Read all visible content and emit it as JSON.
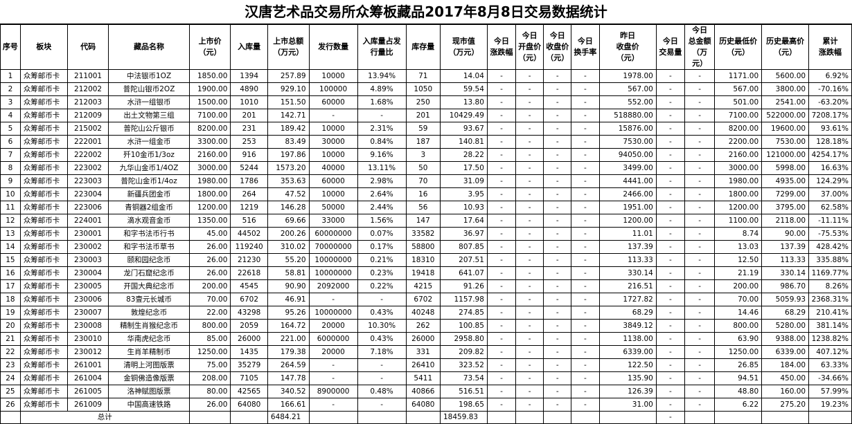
{
  "title": "汉唐艺术品交易所众筹板藏品2017年8月8日交易数据统计",
  "headers": [
    "序号",
    "板块",
    "代码",
    "藏品名称",
    "上市价\n（元）",
    "入库量",
    "上市总额\n（万元）",
    "发行数量",
    "入库量占发\n行量比",
    "库存量",
    "现市值\n（万元）",
    "今日\n涨跌幅",
    "今日\n开盘价\n（元）",
    "今日\n收盘价\n（元）",
    "今日\n换手率",
    "昨日\n收盘价\n（元）",
    "今日\n交易量",
    "今日\n总金额\n（万元）",
    "历史最低价\n（元）",
    "历史最高价\n（元）",
    "累计\n涨跌幅"
  ],
  "rows": [
    [
      "1",
      "众筹邮币卡",
      "211001",
      "中法银币1OZ",
      "1850.00",
      "1394",
      "257.89",
      "10000",
      "13.94%",
      "71",
      "14.04",
      "-",
      "-",
      "-",
      "-",
      "1978.00",
      "-",
      "-",
      "1171.00",
      "5600.00",
      "6.92%"
    ],
    [
      "2",
      "众筹邮币卡",
      "212002",
      "普陀山银币2OZ",
      "1900.00",
      "4890",
      "929.10",
      "100000",
      "4.89%",
      "1050",
      "59.54",
      "-",
      "-",
      "-",
      "-",
      "567.00",
      "-",
      "-",
      "567.00",
      "3800.00",
      "-70.16%"
    ],
    [
      "3",
      "众筹邮币卡",
      "212003",
      "水浒一组银币",
      "1500.00",
      "1010",
      "151.50",
      "60000",
      "1.68%",
      "250",
      "13.80",
      "-",
      "-",
      "-",
      "-",
      "552.00",
      "-",
      "-",
      "501.00",
      "2541.00",
      "-63.20%"
    ],
    [
      "4",
      "众筹邮币卡",
      "212009",
      "出土文物第三组",
      "7100.00",
      "201",
      "142.71",
      "-",
      "-",
      "201",
      "10429.49",
      "-",
      "-",
      "-",
      "-",
      "518880.00",
      "-",
      "-",
      "7100.00",
      "522000.00",
      "7208.17%"
    ],
    [
      "5",
      "众筹邮币卡",
      "215002",
      "普陀山公斤银币",
      "8200.00",
      "231",
      "189.42",
      "10000",
      "2.31%",
      "59",
      "93.67",
      "-",
      "-",
      "-",
      "-",
      "15876.00",
      "-",
      "-",
      "8200.00",
      "19600.00",
      "93.61%"
    ],
    [
      "6",
      "众筹邮币卡",
      "222001",
      "水浒一组金币",
      "3300.00",
      "253",
      "83.49",
      "30000",
      "0.84%",
      "187",
      "140.81",
      "-",
      "-",
      "-",
      "-",
      "7530.00",
      "-",
      "-",
      "2200.00",
      "7530.00",
      "128.18%"
    ],
    [
      "7",
      "众筹邮币卡",
      "222002",
      "歼10金币1/3oz",
      "2160.00",
      "916",
      "197.86",
      "10000",
      "9.16%",
      "3",
      "28.22",
      "-",
      "-",
      "-",
      "-",
      "94050.00",
      "-",
      "-",
      "2160.00",
      "121000.00",
      "4254.17%"
    ],
    [
      "8",
      "众筹邮币卡",
      "223002",
      "九华山金币1/4OZ",
      "3000.00",
      "5244",
      "1573.20",
      "40000",
      "13.11%",
      "50",
      "17.50",
      "-",
      "-",
      "-",
      "-",
      "3499.00",
      "-",
      "-",
      "3000.00",
      "5998.00",
      "16.63%"
    ],
    [
      "9",
      "众筹邮币卡",
      "223003",
      "普陀山金币1/4oz",
      "1980.00",
      "1786",
      "353.63",
      "60000",
      "2.98%",
      "70",
      "31.09",
      "-",
      "-",
      "-",
      "-",
      "4441.00",
      "-",
      "-",
      "1980.00",
      "4935.00",
      "124.29%"
    ],
    [
      "10",
      "众筹邮币卡",
      "223004",
      "新疆兵团金币",
      "1800.00",
      "264",
      "47.52",
      "10000",
      "2.64%",
      "16",
      "3.95",
      "-",
      "-",
      "-",
      "-",
      "2466.00",
      "-",
      "-",
      "1800.00",
      "7299.00",
      "37.00%"
    ],
    [
      "11",
      "众筹邮币卡",
      "223006",
      "青铜器2组金币",
      "1200.00",
      "1219",
      "146.28",
      "50000",
      "2.44%",
      "56",
      "10.93",
      "-",
      "-",
      "-",
      "-",
      "1951.00",
      "-",
      "-",
      "1200.00",
      "3795.00",
      "62.58%"
    ],
    [
      "12",
      "众筹邮币卡",
      "224001",
      "滴水观音金币",
      "1350.00",
      "516",
      "69.66",
      "33000",
      "1.56%",
      "147",
      "17.64",
      "-",
      "-",
      "-",
      "-",
      "1200.00",
      "-",
      "-",
      "1100.00",
      "2118.00",
      "-11.11%"
    ],
    [
      "13",
      "众筹邮币卡",
      "230001",
      "和字书法币行书",
      "45.00",
      "44502",
      "200.26",
      "60000000",
      "0.07%",
      "33582",
      "36.97",
      "-",
      "-",
      "-",
      "-",
      "11.01",
      "-",
      "-",
      "8.74",
      "90.00",
      "-75.53%"
    ],
    [
      "14",
      "众筹邮币卡",
      "230002",
      "和字书法币草书",
      "26.00",
      "119240",
      "310.02",
      "70000000",
      "0.17%",
      "58800",
      "807.85",
      "-",
      "-",
      "-",
      "-",
      "137.39",
      "-",
      "-",
      "13.03",
      "137.39",
      "428.42%"
    ],
    [
      "15",
      "众筹邮币卡",
      "230003",
      "颐和园纪念币",
      "26.00",
      "21230",
      "55.20",
      "10000000",
      "0.21%",
      "18310",
      "207.51",
      "-",
      "-",
      "-",
      "-",
      "113.33",
      "-",
      "-",
      "12.50",
      "113.33",
      "335.88%"
    ],
    [
      "16",
      "众筹邮币卡",
      "230004",
      "龙门石窟纪念币",
      "26.00",
      "22618",
      "58.81",
      "10000000",
      "0.23%",
      "19418",
      "641.07",
      "-",
      "-",
      "-",
      "-",
      "330.14",
      "-",
      "-",
      "21.19",
      "330.14",
      "1169.77%"
    ],
    [
      "17",
      "众筹邮币卡",
      "230005",
      "开国大典纪念币",
      "200.00",
      "4545",
      "90.90",
      "2092000",
      "0.22%",
      "4215",
      "91.26",
      "-",
      "-",
      "-",
      "-",
      "216.51",
      "-",
      "-",
      "200.00",
      "986.70",
      "8.26%"
    ],
    [
      "18",
      "众筹邮币卡",
      "230006",
      "83壹元长城币",
      "70.00",
      "6702",
      "46.91",
      "-",
      "-",
      "6702",
      "1157.98",
      "-",
      "-",
      "-",
      "-",
      "1727.82",
      "-",
      "-",
      "70.00",
      "5059.93",
      "2368.31%"
    ],
    [
      "19",
      "众筹邮币卡",
      "230007",
      "敦煌纪念币",
      "22.00",
      "43298",
      "95.26",
      "10000000",
      "0.43%",
      "40248",
      "274.85",
      "-",
      "-",
      "-",
      "-",
      "68.29",
      "-",
      "-",
      "14.46",
      "68.29",
      "210.41%"
    ],
    [
      "20",
      "众筹邮币卡",
      "230008",
      "精制生肖猴纪念币",
      "800.00",
      "2059",
      "164.72",
      "20000",
      "10.30%",
      "262",
      "100.85",
      "-",
      "-",
      "-",
      "-",
      "3849.12",
      "-",
      "-",
      "800.00",
      "5280.00",
      "381.14%"
    ],
    [
      "21",
      "众筹邮币卡",
      "230010",
      "华南虎纪念币",
      "85.00",
      "26000",
      "221.00",
      "6000000",
      "0.43%",
      "26000",
      "2958.80",
      "-",
      "-",
      "-",
      "-",
      "1138.00",
      "-",
      "-",
      "63.90",
      "9388.00",
      "1238.82%"
    ],
    [
      "22",
      "众筹邮币卡",
      "230012",
      "生肖羊精制币",
      "1250.00",
      "1435",
      "179.38",
      "20000",
      "7.18%",
      "331",
      "209.82",
      "-",
      "-",
      "-",
      "-",
      "6339.00",
      "-",
      "-",
      "1250.00",
      "6339.00",
      "407.12%"
    ],
    [
      "23",
      "众筹邮币卡",
      "261001",
      "清明上河图版票",
      "75.00",
      "35279",
      "264.59",
      "-",
      "-",
      "26410",
      "323.52",
      "-",
      "-",
      "-",
      "-",
      "122.50",
      "-",
      "-",
      "26.85",
      "184.00",
      "63.33%"
    ],
    [
      "24",
      "众筹邮币卡",
      "261004",
      "金铜佛造像版票",
      "208.00",
      "7105",
      "147.78",
      "-",
      "-",
      "5411",
      "73.54",
      "-",
      "-",
      "-",
      "-",
      "135.90",
      "-",
      "-",
      "94.51",
      "450.00",
      "-34.66%"
    ],
    [
      "25",
      "众筹邮币卡",
      "261005",
      "洛神赋图版票",
      "80.00",
      "42565",
      "340.52",
      "8900000",
      "0.48%",
      "40866",
      "516.51",
      "-",
      "-",
      "-",
      "-",
      "126.39",
      "-",
      "-",
      "48.80",
      "160.00",
      "57.99%"
    ],
    [
      "26",
      "众筹邮币卡",
      "261009",
      "中国高速铁路",
      "26.00",
      "64080",
      "166.61",
      "-",
      "-",
      "64080",
      "198.65",
      "-",
      "-",
      "-",
      "-",
      "31.00",
      "-",
      "-",
      "6.22",
      "275.20",
      "19.23%"
    ]
  ],
  "total": {
    "label": "总计",
    "total_listing_amount": "6484.21",
    "total_market_value": "18459.83",
    "dash": "-"
  }
}
